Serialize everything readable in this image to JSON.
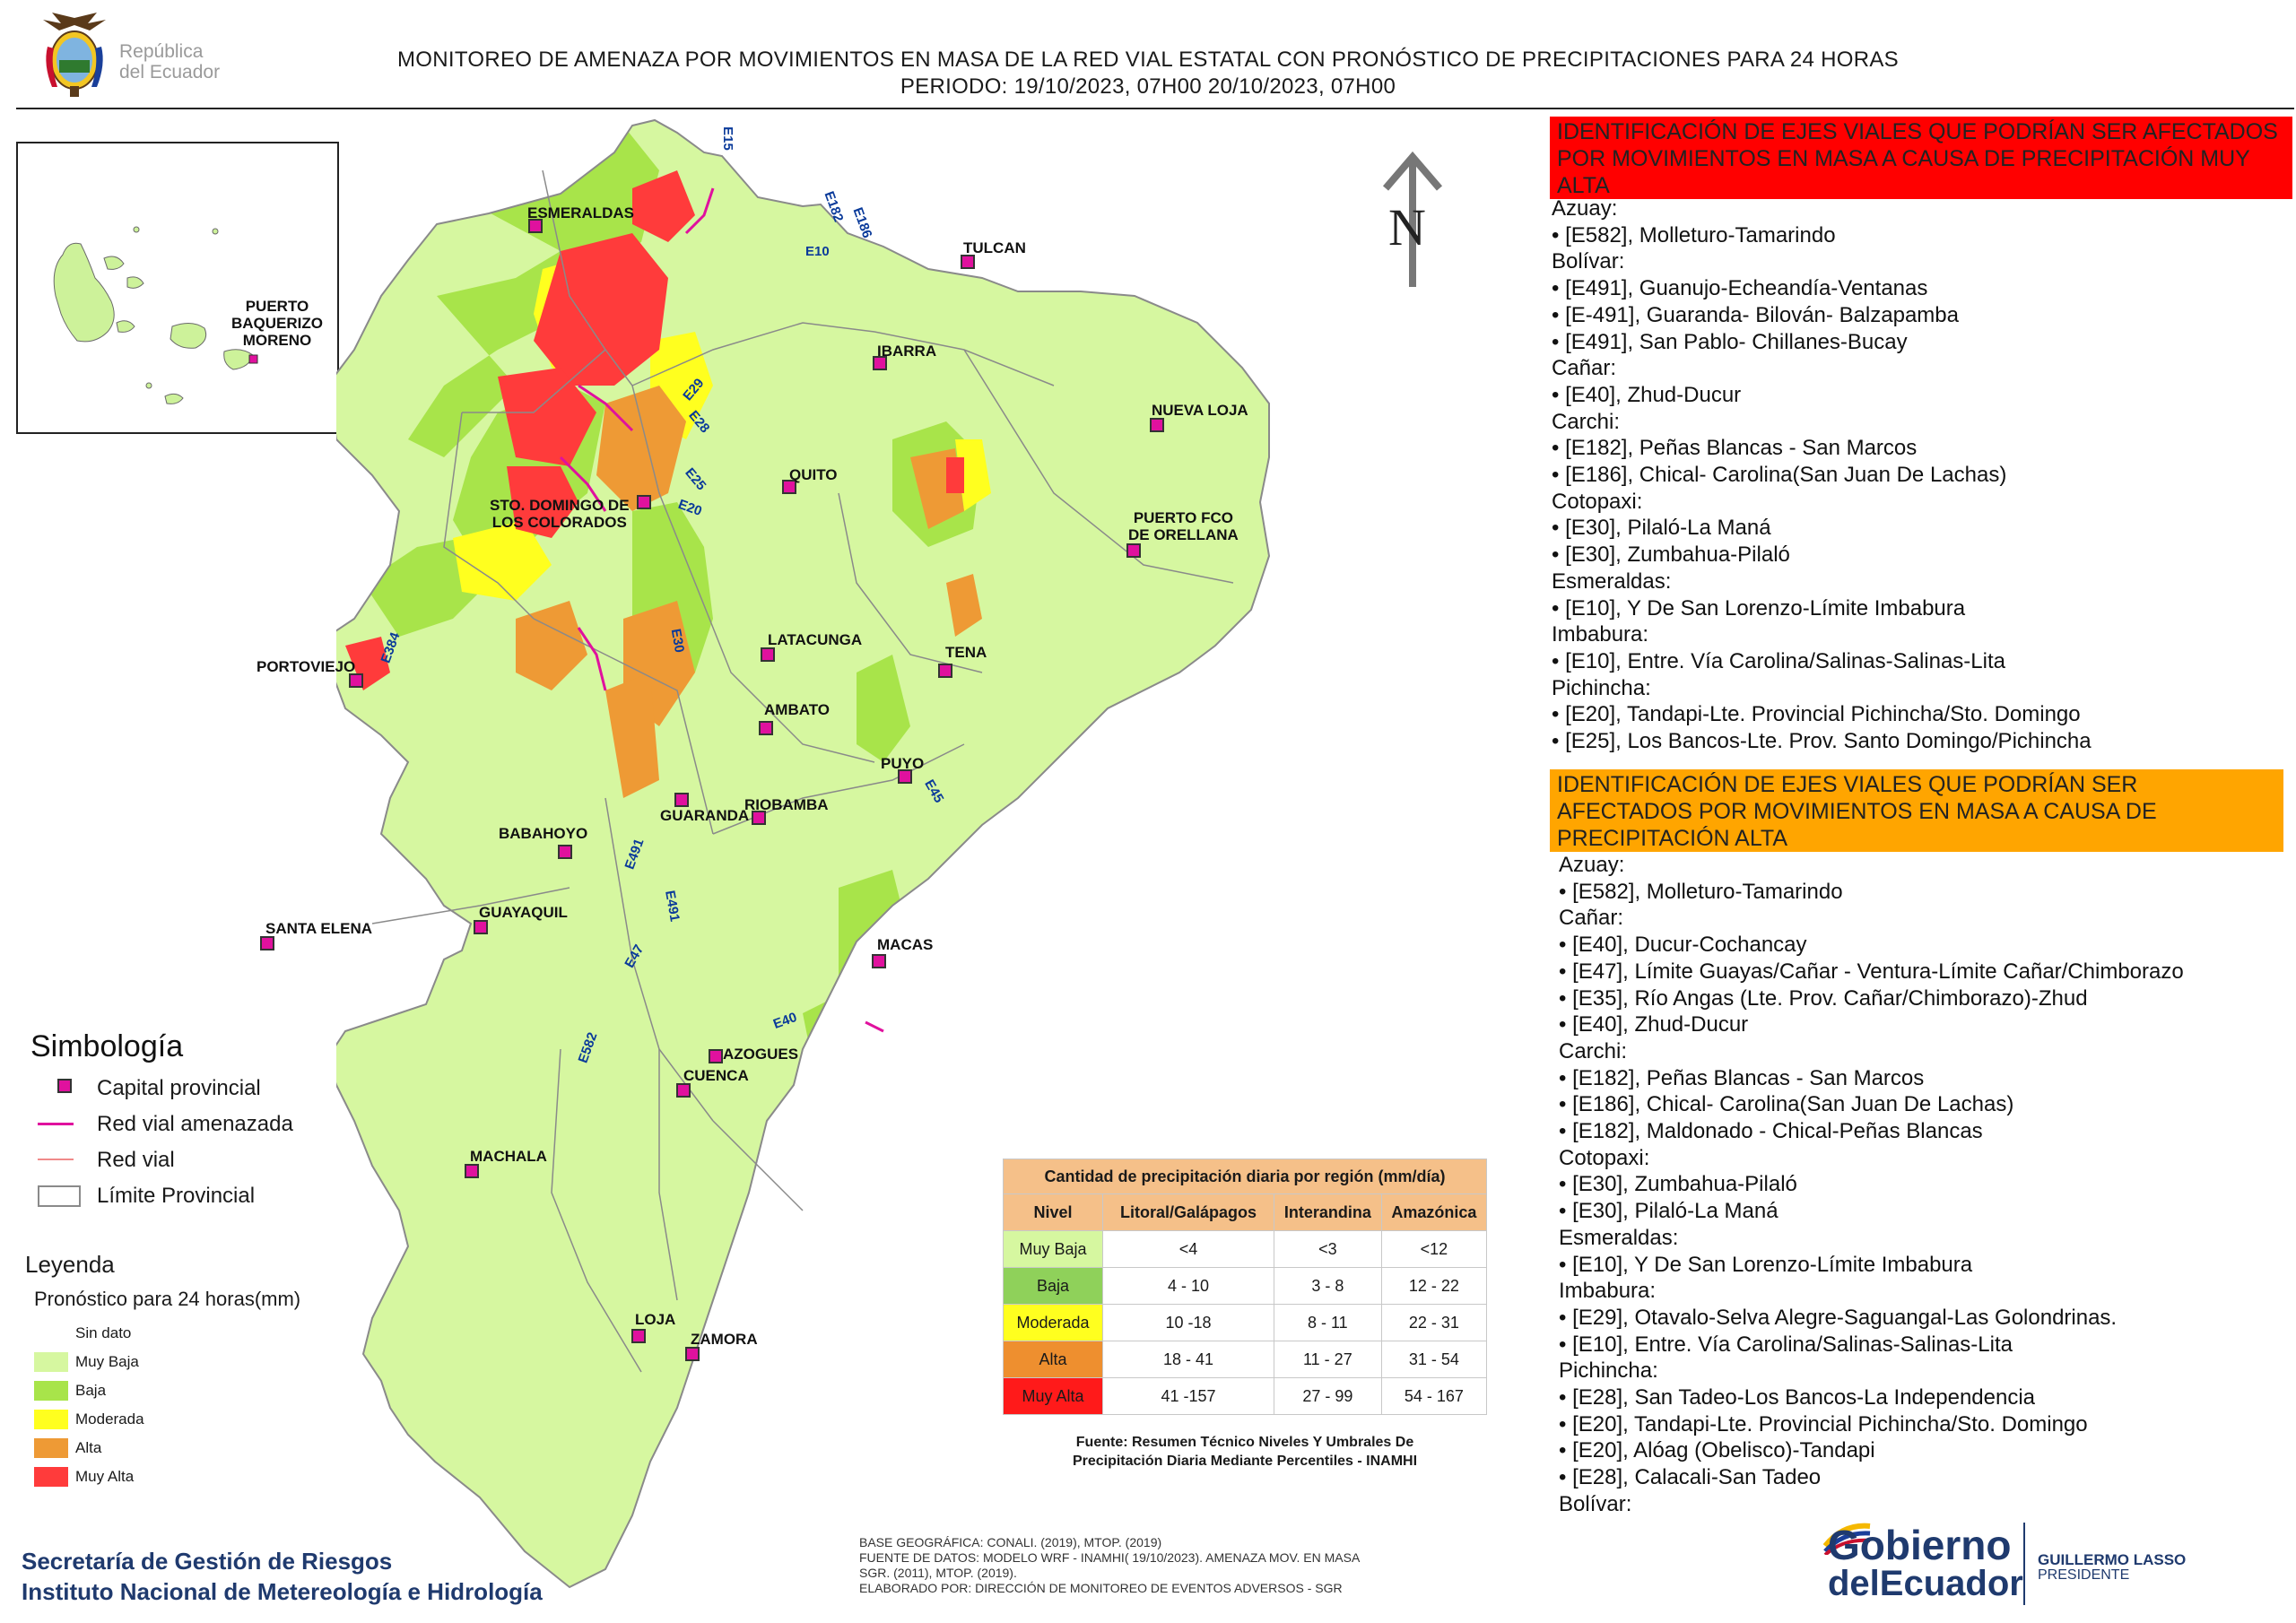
{
  "header": {
    "logo_republica_text": [
      "República",
      "del Ecuador"
    ],
    "title_line1": "MONITOREO DE AMENAZA POR MOVIMIENTOS EN MASA DE LA RED VIAL  ESTATAL  CON PRONÓSTICO  DE  PRECIPITACIONES PARA 24 HORAS",
    "title_line2": "PERIODO: 19/10/2023, 07H00 20/10/2023, 07H00"
  },
  "map": {
    "north_label": "N",
    "inset_cities": [
      {
        "name": "PUERTO\nBAQUERIZO\nMORENO"
      }
    ],
    "cities": [
      {
        "name": "ESMERALDAS"
      },
      {
        "name": "TULCAN"
      },
      {
        "name": "IBARRA"
      },
      {
        "name": "NUEVA LOJA"
      },
      {
        "name": "QUITO"
      },
      {
        "name": "STO. DOMINGO DE\nLOS COLORADOS"
      },
      {
        "name": "PUERTO FCO\nDE ORELLANA"
      },
      {
        "name": "LATACUNGA"
      },
      {
        "name": "TENA"
      },
      {
        "name": "PORTOVIEJO"
      },
      {
        "name": "AMBATO"
      },
      {
        "name": "PUYO"
      },
      {
        "name": "GUARANDA"
      },
      {
        "name": "RIOBAMBA"
      },
      {
        "name": "BABAHOYO"
      },
      {
        "name": "GUAYAQUIL"
      },
      {
        "name": "SANTA ELENA"
      },
      {
        "name": "MACAS"
      },
      {
        "name": "AZOGUES"
      },
      {
        "name": "CUENCA"
      },
      {
        "name": "MACHALA"
      },
      {
        "name": "LOJA"
      },
      {
        "name": "ZAMORA"
      }
    ],
    "road_labels": [
      "E15",
      "E182",
      "E186",
      "E10",
      "E29",
      "E28",
      "E25",
      "E20",
      "E30",
      "E384",
      "E491",
      "E491",
      "E45",
      "E47",
      "E40",
      "E582"
    ]
  },
  "simbologia": {
    "title": "Simbología",
    "items": [
      {
        "label": "Capital provincial",
        "icon": "capital-marker-icon"
      },
      {
        "label": "Red vial amenazada",
        "color": "#e0119e"
      },
      {
        "label": "Red vial",
        "color": "#f08a8a"
      },
      {
        "label": "Límite Provincial",
        "color": "#8a8a8a"
      }
    ]
  },
  "leyenda": {
    "title": "Leyenda",
    "subtitle": "Pronóstico para 24 horas(mm)",
    "items": [
      {
        "label": "Sin dato",
        "color": "#ffffff"
      },
      {
        "label": "Muy Baja",
        "color": "#d6f7a0"
      },
      {
        "label": "Baja",
        "color": "#a8e44a"
      },
      {
        "label": "Moderada",
        "color": "#ffff1f"
      },
      {
        "label": "Alta",
        "color": "#ee9a35"
      },
      {
        "label": "Muy Alta",
        "color": "#ff3b3b"
      }
    ]
  },
  "precip_table": {
    "title": "Cantidad de precipitación diaria por región (mm/día)",
    "columns": [
      "Nivel",
      "Litoral/Galápagos",
      "Interandina",
      "Amazónica"
    ],
    "rows": [
      {
        "nivel": "Muy Baja",
        "color": "#d6f7a0",
        "litoral": "<4",
        "interandina": "<3",
        "amazonica": "<12"
      },
      {
        "nivel": "Baja",
        "color": "#8fd15a",
        "litoral": "4 - 10",
        "interandina": "3 - 8",
        "amazonica": "12 - 22"
      },
      {
        "nivel": "Moderada",
        "color": "#ffff1f",
        "litoral": "10 -18",
        "interandina": "8 - 11",
        "amazonica": "22 - 31"
      },
      {
        "nivel": "Alta",
        "color": "#ee8f2f",
        "litoral": "18 - 41",
        "interandina": "11 - 27",
        "amazonica": "31 - 54"
      },
      {
        "nivel": "Muy Alta",
        "color": "#ff1a1a",
        "litoral": "41 -157",
        "interandina": "27 - 99",
        "amazonica": "54 - 167"
      }
    ],
    "source_line1": "Fuente: Resumen Técnico Niveles Y Umbrales De",
    "source_line2": "Precipitación Diaria Mediante Percentiles - INAMHI"
  },
  "footer": {
    "agency_line1": "Secretaría de Gestión de Riesgos",
    "agency_line2": "Instituto Nacional de Metereología e Hidrología",
    "notes": [
      "BASE GEOGRÁFICA: CONALI. (2019), MTOP. (2019)",
      "FUENTE DE DATOS: MODELO WRF - INAMHI( 19/10/2023).  AMENAZA MOV. EN MASA",
      "SGR. (2011), MTOP. (2019).",
      "ELABORADO POR: DIRECCIÓN DE MONITOREO DE EVENTOS ADVERSOS - SGR"
    ],
    "gobierno_line1": "Gobierno",
    "gobierno_line2": "delEcuador",
    "president_name": "GUILLERMO LASSO",
    "president_title": "PRESIDENTE"
  },
  "panel_red": {
    "header": "IDENTIFICACIÓN DE EJES VIALES QUE PODRÍAN SER AFECTADOS POR MOVIMIENTOS EN MASA A CAUSA DE PRECIPITACIÓN MUY ALTA",
    "color": "#ff0000",
    "lines": [
      "Azuay:",
      "• [E582], Molleturo-Tamarindo",
      "Bolívar:",
      "• [E491], Guanujo-Echeandía-Ventanas",
      "• [E-491], Guaranda- Bilován- Balzapamba",
      "• [E491], San Pablo- Chillanes-Bucay",
      "Cañar:",
      "• [E40], Zhud-Ducur",
      "Carchi:",
      "• [E182], Peñas Blancas - San Marcos",
      "• [E186], Chical- Carolina(San Juan De Lachas)",
      "Cotopaxi:",
      "• [E30], Pilaló-La Maná",
      "• [E30], Zumbahua-Pilaló",
      "Esmeraldas:",
      "• [E10], Y De San Lorenzo-Límite Imbabura",
      "Imbabura:",
      "• [E10], Entre. Vía Carolina/Salinas-Salinas-Lita",
      "Pichincha:",
      "• [E20], Tandapi-Lte. Provincial Pichincha/Sto. Domingo",
      "• [E25], Los Bancos-Lte. Prov. Santo Domingo/Pichincha"
    ]
  },
  "panel_orange": {
    "header": "IDENTIFICACIÓN DE EJES VIALES QUE PODRÍAN SER AFECTADOS POR MOVIMIENTOS EN MASA A CAUSA DE PRECIPITACIÓN  ALTA",
    "color": "#ffa500",
    "lines": [
      "Azuay:",
      "• [E582], Molleturo-Tamarindo",
      "Cañar:",
      "• [E40], Ducur-Cochancay",
      "• [E47], Límite Guayas/Cañar - Ventura-Límite Cañar/Chimborazo",
      "• [E35], Río Angas (Lte. Prov. Cañar/Chimborazo)-Zhud",
      "• [E40], Zhud-Ducur",
      "Carchi:",
      "• [E182], Peñas Blancas - San Marcos",
      "• [E186], Chical- Carolina(San Juan De Lachas)",
      "• [E182], Maldonado - Chical-Peñas Blancas",
      "Cotopaxi:",
      "• [E30], Zumbahua-Pilaló",
      "• [E30], Pilaló-La Maná",
      "Esmeraldas:",
      "• [E10], Y De San Lorenzo-Límite Imbabura",
      "Imbabura:",
      "• [E29], Otavalo-Selva Alegre-Saguangal-Las Golondrinas.",
      "• [E10], Entre. Vía Carolina/Salinas-Salinas-Lita",
      "Pichincha:",
      "• [E28], San Tadeo-Los Bancos-La Independencia",
      "• [E20], Tandapi-Lte. Provincial Pichincha/Sto. Domingo",
      "• [E20], Alóag (Obelisco)-Tandapi",
      "• [E28], Calacali-San Tadeo",
      "Bolívar:"
    ]
  }
}
